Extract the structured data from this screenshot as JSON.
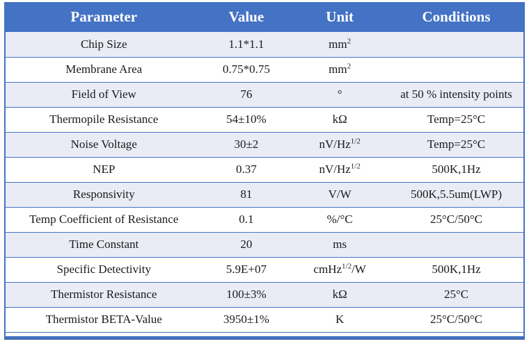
{
  "colors": {
    "header_bg": "#4472C4",
    "header_text": "#FFFFFF",
    "band_bg": "#E9EBF5",
    "row_bg": "#FFFFFF",
    "border": "#4472C4",
    "bottom_bar": "#4472C4",
    "bottom_bar_edge": "#2F528F",
    "text": "#1A1A1A"
  },
  "table": {
    "columns": [
      {
        "key": "parameter",
        "label": "Parameter"
      },
      {
        "key": "value",
        "label": "Value"
      },
      {
        "key": "unit",
        "label": "Unit"
      },
      {
        "key": "conditions",
        "label": "Conditions"
      }
    ],
    "rows": [
      {
        "parameter": "Chip Size",
        "value": "1.1*1.1",
        "unit_base": "mm",
        "unit_sup": "2",
        "unit_tail": "",
        "conditions": ""
      },
      {
        "parameter": "Membrane Area",
        "value": "0.75*0.75",
        "unit_base": "mm",
        "unit_sup": "2",
        "unit_tail": "",
        "conditions": ""
      },
      {
        "parameter": "Field of View",
        "value": "76",
        "unit_base": "°",
        "unit_sup": "",
        "unit_tail": "",
        "conditions": "at 50 % intensity points"
      },
      {
        "parameter": "Thermopile Resistance",
        "value": "54±10%",
        "unit_base": "kΩ",
        "unit_sup": "",
        "unit_tail": "",
        "conditions": "Temp=25°C"
      },
      {
        "parameter": "Noise Voltage",
        "value": "30±2",
        "unit_base": "nV/Hz",
        "unit_sup": "1/2",
        "unit_tail": "",
        "conditions": "Temp=25°C"
      },
      {
        "parameter": "NEP",
        "value": "0.37",
        "unit_base": "nV/Hz",
        "unit_sup": "1/2",
        "unit_tail": "",
        "conditions": "500K,1Hz"
      },
      {
        "parameter": "Responsivity",
        "value": "81",
        "unit_base": "V/W",
        "unit_sup": "",
        "unit_tail": "",
        "conditions": "500K,5.5um(LWP)"
      },
      {
        "parameter": "Temp Coefficient of Resistance",
        "value": "0.1",
        "unit_base": "%/°C",
        "unit_sup": "",
        "unit_tail": "",
        "conditions": "25°C/50°C"
      },
      {
        "parameter": "Time Constant",
        "value": "20",
        "unit_base": "ms",
        "unit_sup": "",
        "unit_tail": "",
        "conditions": ""
      },
      {
        "parameter": "Specific Detectivity",
        "value": "5.9E+07",
        "unit_base": "cmHz",
        "unit_sup": "1/2",
        "unit_tail": "/W",
        "conditions": "500K,1Hz"
      },
      {
        "parameter": "Thermistor Resistance",
        "value": "100±3%",
        "unit_base": "kΩ",
        "unit_sup": "",
        "unit_tail": "",
        "conditions": "25°C"
      },
      {
        "parameter": "Thermistor BETA-Value",
        "value": "3950±1%",
        "unit_base": "K",
        "unit_sup": "",
        "unit_tail": "",
        "conditions": "25°C/50°C"
      }
    ]
  }
}
